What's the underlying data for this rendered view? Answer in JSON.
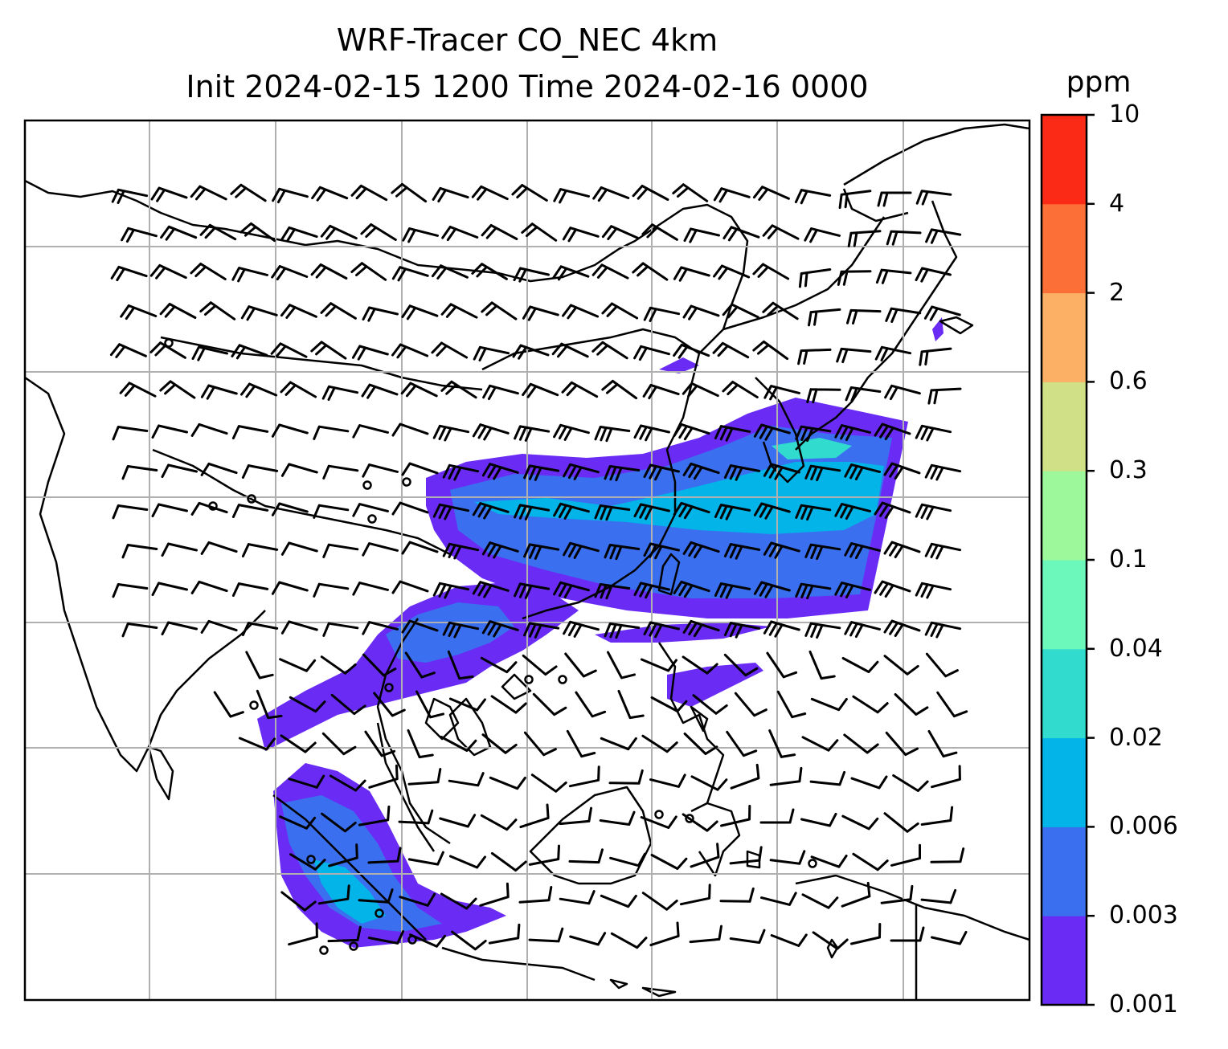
{
  "title": {
    "line1": "WRF-Tracer CO_NEC 4km",
    "line2": "Init 2024-02-15 1200 Time 2024-02-16 0000"
  },
  "colorbar": {
    "unit": "ppm",
    "levels": [
      "0.001",
      "0.003",
      "0.006",
      "0.02",
      "0.04",
      "0.1",
      "0.3",
      "0.6",
      "2",
      "4",
      "10"
    ],
    "colors": [
      "#6a2cf5",
      "#3a70f0",
      "#02b4e8",
      "#31dccf",
      "#6cf8bb",
      "#9cf89a",
      "#d0e086",
      "#fcb066",
      "#fc7038",
      "#fb2a17"
    ]
  },
  "map": {
    "projection_grid": "lat-lon gridlines, no tick labels",
    "features": [
      "coastlines",
      "country borders",
      "gridlines",
      "wind barbs",
      "CO tracer concentration shading"
    ],
    "region": "South, Southeast and East Asia"
  }
}
